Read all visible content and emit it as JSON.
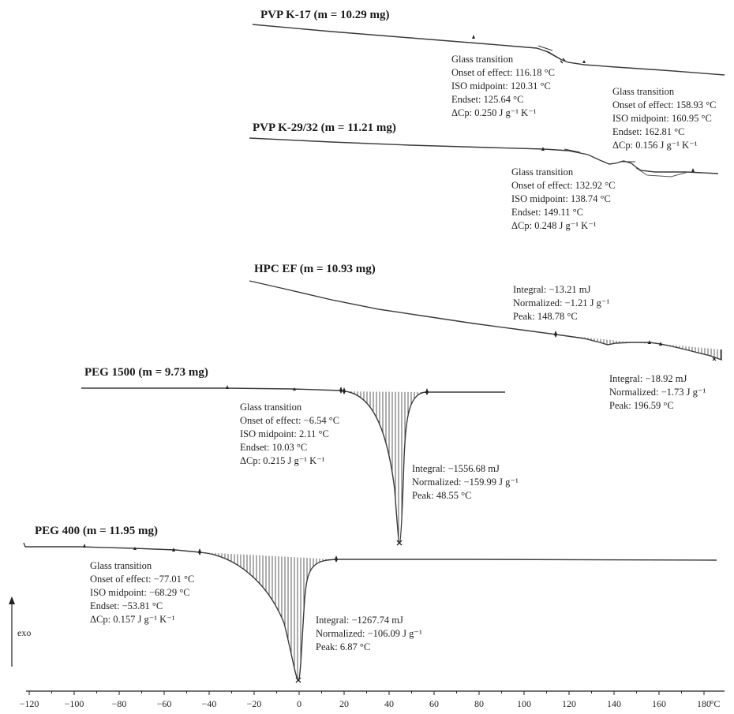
{
  "chart_data": {
    "type": "line",
    "xlabel": "°C",
    "ylabel": "exo",
    "xlim": [
      -120,
      190
    ],
    "x_ticks": [
      -120,
      -100,
      -80,
      -60,
      -40,
      -20,
      0,
      20,
      40,
      60,
      80,
      100,
      120,
      140,
      160,
      180
    ],
    "tick_labels": [
      "−120",
      "−100",
      "−80",
      "−60",
      "−40",
      "−20",
      "0",
      "20",
      "40",
      "60",
      "80",
      "100",
      "120",
      "140",
      "160",
      "180"
    ],
    "series": [
      {
        "name": "PVP K-17 (m = 10.29 mg)",
        "annotations": [
          {
            "lines": [
              "Glass transition",
              "Onset of effect: 116.18 °C",
              "ISO midpoint: 120.31 °C",
              "Endset: 125.64 °C",
              "ΔCp: 0.250 J g⁻¹ K⁻¹"
            ]
          }
        ]
      },
      {
        "name": "PVP K-29/32 (m = 11.21 mg)",
        "annotations": [
          {
            "lines": [
              "Glass transition",
              "Onset of effect: 158.93 °C",
              "ISO midpoint: 160.95 °C",
              "Endset: 162.81 °C",
              "ΔCp: 0.156 J g⁻¹ K⁻¹"
            ]
          },
          {
            "lines": [
              "Glass transition",
              "Onset of effect: 132.92 °C",
              "ISO midpoint: 138.74 °C",
              "Endset: 149.11 °C",
              "ΔCp: 0.248 J g⁻¹ K⁻¹"
            ]
          }
        ]
      },
      {
        "name": "HPC EF (m = 10.93 mg)",
        "annotations": [
          {
            "lines": [
              "Integral: −13.21 mJ",
              "Normalized: −1.21 J g⁻¹",
              "Peak: 148.78 °C"
            ]
          },
          {
            "lines": [
              "Integral: −18.92 mJ",
              "Normalized: −1.73 J g⁻¹",
              "Peak: 196.59 °C"
            ]
          }
        ]
      },
      {
        "name": "PEG 1500 (m = 9.73 mg)",
        "annotations": [
          {
            "lines": [
              "Glass transition",
              "Onset of effect: −6.54 °C",
              "ISO midpoint: 2.11 °C",
              "Endset: 10.03 °C",
              "ΔCp: 0.215 J g⁻¹ K⁻¹"
            ]
          },
          {
            "lines": [
              "Integral: −1556.68 mJ",
              "Normalized: −159.99 J g⁻¹",
              "Peak: 48.55 °C"
            ]
          }
        ]
      },
      {
        "name": "PEG 400 (m = 11.95 mg)",
        "annotations": [
          {
            "lines": [
              "Glass transition",
              "Onset of effect: −77.01 °C",
              "ISO midpoint: −68.29 °C",
              "Endset: −53.81 °C",
              "ΔCp: 0.157 J g⁻¹ K⁻¹"
            ]
          },
          {
            "lines": [
              "Integral: −1267.74 mJ",
              "Normalized: −106.09 J g⁻¹",
              "Peak: 6.87 °C"
            ]
          }
        ]
      }
    ]
  }
}
